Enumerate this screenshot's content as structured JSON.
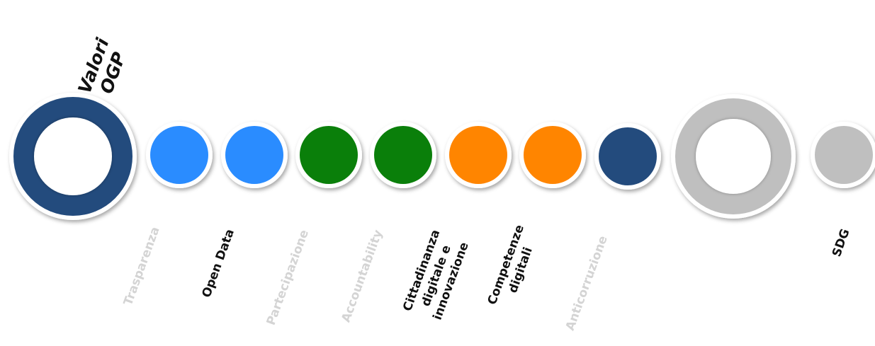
{
  "title": {
    "lines": [
      "Valori",
      "OGP"
    ]
  },
  "colors": {
    "navy": "#234B7D",
    "blue": "#2A8CFF",
    "green": "#0A7F0A",
    "orange": "#FF8500",
    "gray": "#BFBFBF",
    "white_border": "#ffffff",
    "active_text": "#111111",
    "inactive_text": "#d4d4d4"
  },
  "nodes": [
    {
      "id": "valori-ogp-ring",
      "kind": "ring",
      "color": "navy"
    },
    {
      "id": "trasparenza",
      "kind": "dot",
      "color": "blue",
      "label": [
        "Trasparenza"
      ],
      "active": false
    },
    {
      "id": "open-data",
      "kind": "dot",
      "color": "blue",
      "label": [
        "Open Data"
      ],
      "active": true
    },
    {
      "id": "partecipazione",
      "kind": "dot",
      "color": "green",
      "label": [
        "Partecipazione"
      ],
      "active": false
    },
    {
      "id": "accountability",
      "kind": "dot",
      "color": "green",
      "label": [
        "Accountability"
      ],
      "active": false
    },
    {
      "id": "cittadinanza",
      "kind": "dot",
      "color": "orange",
      "label": [
        "Cittadinanza",
        "digitale e",
        "innovazione"
      ],
      "active": true
    },
    {
      "id": "competenze",
      "kind": "dot",
      "color": "orange",
      "label": [
        "Competenze",
        "digitali"
      ],
      "active": true
    },
    {
      "id": "anticorruzione",
      "kind": "dot",
      "color": "navy",
      "label": [
        "Anticorruzione"
      ],
      "active": false
    },
    {
      "id": "sdg-ring",
      "kind": "ring",
      "color": "gray"
    },
    {
      "id": "sdg",
      "kind": "dot",
      "color": "gray",
      "label": [
        "SDG"
      ],
      "active": true
    }
  ]
}
